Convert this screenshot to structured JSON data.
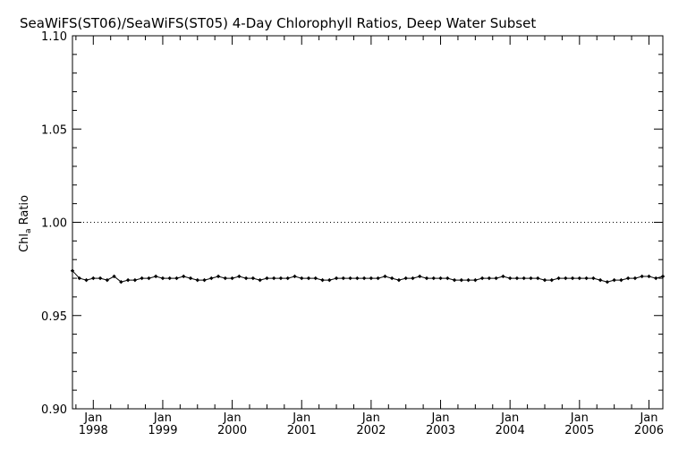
{
  "chart_data": {
    "type": "line",
    "title": "SeaWiFS(ST06)/SeaWiFS(ST05) 4-Day Chlorophyll Ratios, Deep Water Subset",
    "ylabel_main": "Chl",
    "ylabel_sub": "a",
    "ylabel_tail": " Ratio",
    "xlabel": "",
    "ylim": [
      0.9,
      1.1
    ],
    "xlim": [
      1997.7,
      2006.2
    ],
    "yticks": [
      "0.90",
      "0.95",
      "1.00",
      "1.05",
      "1.10"
    ],
    "xticks": [
      {
        "top": "Jan",
        "bottom": "1998",
        "x": 1998
      },
      {
        "top": "Jan",
        "bottom": "1999",
        "x": 1999
      },
      {
        "top": "Jan",
        "bottom": "2000",
        "x": 2000
      },
      {
        "top": "Jan",
        "bottom": "2001",
        "x": 2001
      },
      {
        "top": "Jan",
        "bottom": "2002",
        "x": 2002
      },
      {
        "top": "Jan",
        "bottom": "2003",
        "x": 2003
      },
      {
        "top": "Jan",
        "bottom": "2004",
        "x": 2004
      },
      {
        "top": "Jan",
        "bottom": "2005",
        "x": 2005
      },
      {
        "top": "Jan",
        "bottom": "2006",
        "x": 2006
      }
    ],
    "reference_line": {
      "y": 1.0,
      "style": "dotted"
    },
    "grid": false,
    "series": [
      {
        "marker": "diamond",
        "x": [
          1997.7,
          1997.8,
          1997.9,
          1998.0,
          1998.1,
          1998.2,
          1998.3,
          1998.4,
          1998.5,
          1998.6,
          1998.7,
          1998.8,
          1998.9,
          1999.0,
          1999.1,
          1999.2,
          1999.3,
          1999.4,
          1999.5,
          1999.6,
          1999.7,
          1999.8,
          1999.9,
          2000.0,
          2000.1,
          2000.2,
          2000.3,
          2000.4,
          2000.5,
          2000.6,
          2000.7,
          2000.8,
          2000.9,
          2001.0,
          2001.1,
          2001.2,
          2001.3,
          2001.4,
          2001.5,
          2001.6,
          2001.7,
          2001.8,
          2001.9,
          2002.0,
          2002.1,
          2002.2,
          2002.3,
          2002.4,
          2002.5,
          2002.6,
          2002.7,
          2002.8,
          2002.9,
          2003.0,
          2003.1,
          2003.2,
          2003.3,
          2003.4,
          2003.5,
          2003.6,
          2003.7,
          2003.8,
          2003.9,
          2004.0,
          2004.1,
          2004.2,
          2004.3,
          2004.4,
          2004.5,
          2004.6,
          2004.7,
          2004.8,
          2004.9,
          2005.0,
          2005.1,
          2005.2,
          2005.3,
          2005.4,
          2005.5,
          2005.6,
          2005.7,
          2005.8,
          2005.9,
          2006.0,
          2006.1,
          2006.2
        ],
        "y": [
          0.974,
          0.97,
          0.969,
          0.97,
          0.97,
          0.969,
          0.971,
          0.968,
          0.969,
          0.969,
          0.97,
          0.97,
          0.971,
          0.97,
          0.97,
          0.97,
          0.971,
          0.97,
          0.969,
          0.969,
          0.97,
          0.971,
          0.97,
          0.97,
          0.971,
          0.97,
          0.97,
          0.969,
          0.97,
          0.97,
          0.97,
          0.97,
          0.971,
          0.97,
          0.97,
          0.97,
          0.969,
          0.969,
          0.97,
          0.97,
          0.97,
          0.97,
          0.97,
          0.97,
          0.97,
          0.971,
          0.97,
          0.969,
          0.97,
          0.97,
          0.971,
          0.97,
          0.97,
          0.97,
          0.97,
          0.969,
          0.969,
          0.969,
          0.969,
          0.97,
          0.97,
          0.97,
          0.971,
          0.97,
          0.97,
          0.97,
          0.97,
          0.97,
          0.969,
          0.969,
          0.97,
          0.97,
          0.97,
          0.97,
          0.97,
          0.97,
          0.969,
          0.968,
          0.969,
          0.969,
          0.97,
          0.97,
          0.971,
          0.971,
          0.97,
          0.971
        ]
      }
    ]
  }
}
